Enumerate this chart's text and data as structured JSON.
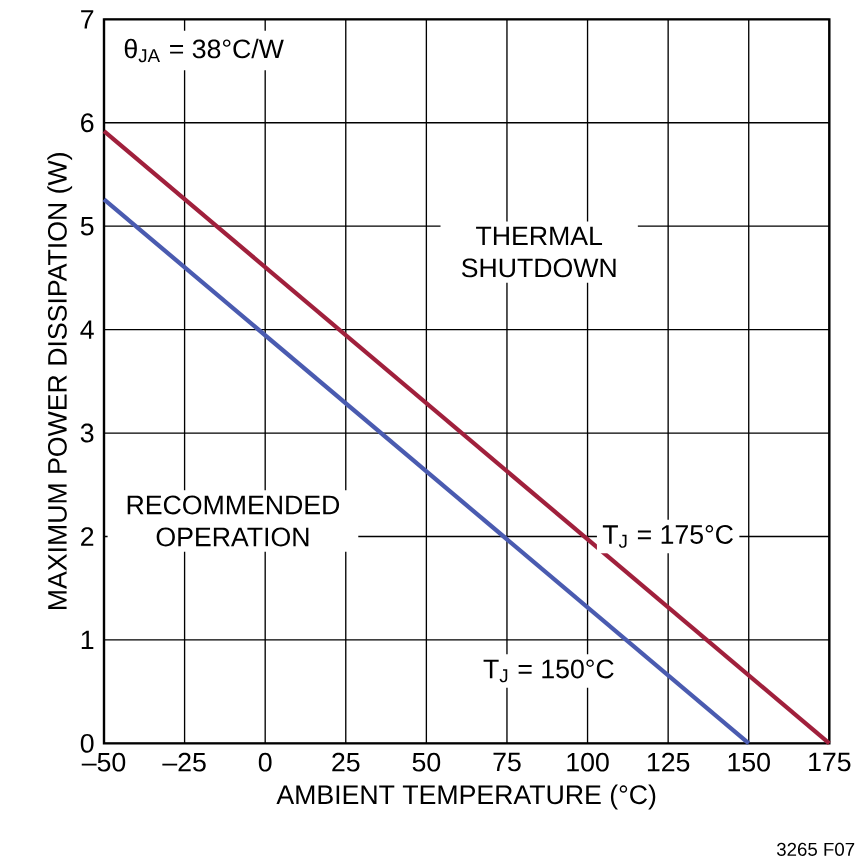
{
  "chart_data": {
    "type": "line",
    "xlabel": "AMBIENT TEMPERATURE (°C)",
    "ylabel": "MAXIMUM POWER DISSIPATION (W)",
    "xlim": [
      -50,
      175
    ],
    "xticks": [
      {
        "value": -50,
        "label": "–50"
      },
      {
        "value": -25,
        "label": "–25"
      },
      0,
      25,
      50,
      75,
      100,
      125,
      150,
      175
    ],
    "ylim": [
      0,
      7
    ],
    "yticks": [
      0,
      1,
      2,
      3,
      4,
      5,
      6,
      7
    ],
    "grid": true,
    "marker": "none",
    "line_style": "solid",
    "series": [
      {
        "color": "#a0203c",
        "x": [
          -50,
          175
        ],
        "values": [
          5.92,
          0
        ]
      },
      {
        "color": "#4a5bb0",
        "x": [
          -50,
          150
        ],
        "values": [
          5.26,
          0
        ]
      }
    ],
    "annotations": [
      "θ$_{JA}$ = 38°C/W",
      "THERMAL SHUTDOWN",
      "RECOMMENDED OPERATION",
      "T$_{J}$ = 175°C",
      "T$_{J}$ = 150°C",
      "3265 F07"
    ]
  }
}
